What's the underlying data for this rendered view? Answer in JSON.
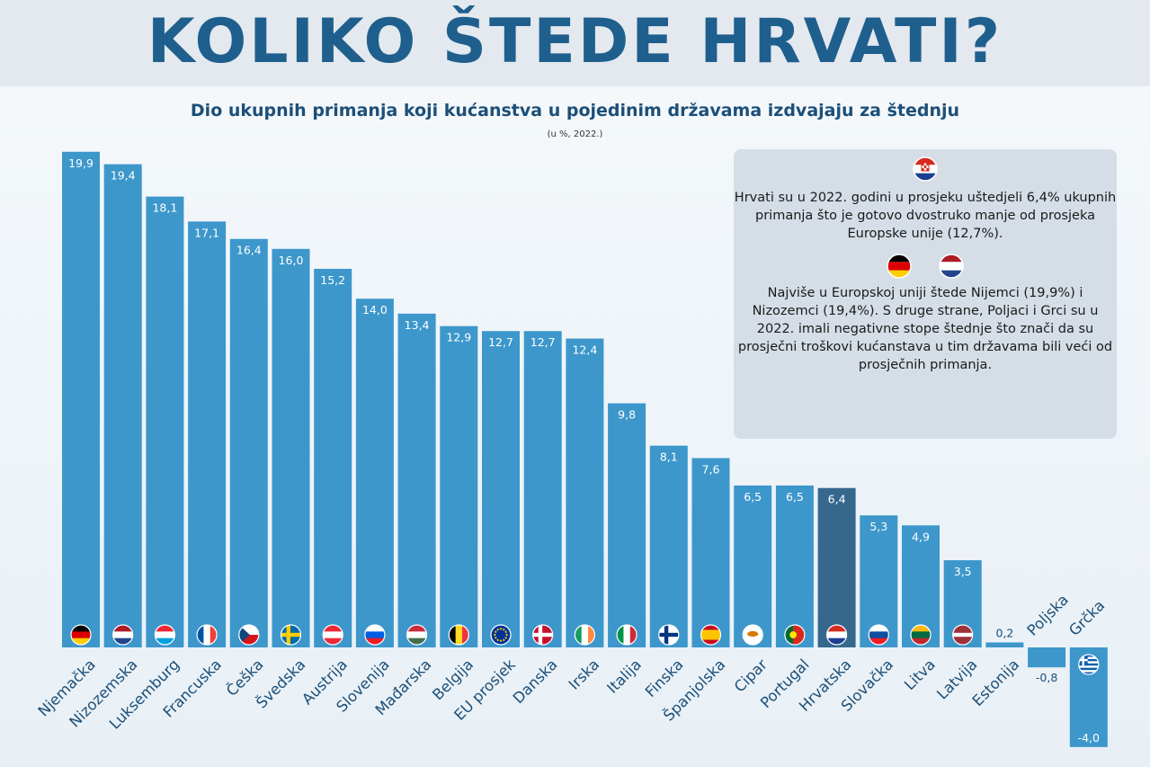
{
  "header": {
    "title": "KOLIKO ŠTEDE HRVATI?"
  },
  "chart_data": {
    "type": "bar",
    "title": "Dio ukupnih primanja koji kućanstva u pojedinim državama izdvajaju za štednju",
    "subtitle": "(u %, 2022.)",
    "categories": [
      "Njemačka",
      "Nizozemska",
      "Luksemburg",
      "Francuska",
      "Češka",
      "Švedska",
      "Austrija",
      "Slovenija",
      "Mađarska",
      "Belgija",
      "EU prosjek",
      "Danska",
      "Irska",
      "Italija",
      "Finska",
      "Španjolska",
      "Cipar",
      "Portugal",
      "Hrvatska",
      "Slovačka",
      "Litva",
      "Latvija",
      "Estonija",
      "Poljska",
      "Grčka"
    ],
    "values": [
      19.9,
      19.4,
      18.1,
      17.1,
      16.4,
      16.0,
      15.2,
      14.0,
      13.4,
      12.9,
      12.7,
      12.7,
      12.4,
      9.8,
      8.1,
      7.6,
      6.5,
      6.5,
      6.4,
      5.3,
      4.9,
      3.5,
      0.2,
      -0.8,
      -4.0
    ],
    "value_labels": [
      "19,9",
      "19,4",
      "18,1",
      "17,1",
      "16,4",
      "16,0",
      "15,2",
      "14,0",
      "13,4",
      "12,9",
      "12,7",
      "12,7",
      "12,4",
      "9,8",
      "8,1",
      "7,6",
      "6,5",
      "6,5",
      "6,4",
      "5,3",
      "4,9",
      "3,5",
      "0,2",
      "-0,8",
      "-4,0"
    ],
    "highlight": "Hrvatska",
    "colors": {
      "bar": "#3d97cb",
      "highlight": "#36688e",
      "label": "#1c4f78"
    },
    "grid": false,
    "legend": "none"
  },
  "info_box": {
    "text1": "Hrvati su u 2022. godini u prosjeku uštedjeli 6,4% ukupnih primanja što je gotovo dvostruko manje od prosjeka Europske unije (12,7%).",
    "text2": "Najviše u Europskoj uniji štede Nijemci (19,9%) i Nizozemci (19,4%). S druge strane, Poljaci i Grci su u 2022. imali negativne stope štednje što znači da su prosječni troškovi kućanstava u tim državama bili veći od prosječnih primanja.",
    "icons": [
      "croatia-flag-icon",
      "germany-flag-icon",
      "netherlands-flag-icon"
    ]
  }
}
